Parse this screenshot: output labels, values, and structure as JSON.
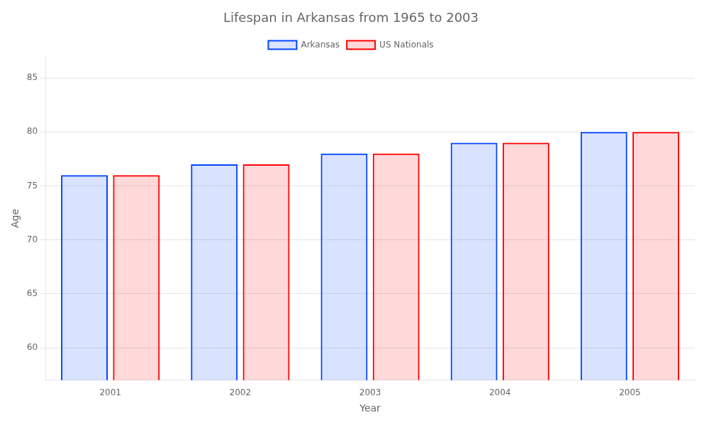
{
  "chart_data": {
    "type": "bar",
    "title": "Lifespan in Arkansas from 1965 to 2003",
    "xlabel": "Year",
    "ylabel": "Age",
    "categories": [
      "2001",
      "2002",
      "2003",
      "2004",
      "2005"
    ],
    "series": [
      {
        "name": "Arkansas",
        "color": "#0044ff",
        "values": [
          76,
          77,
          78,
          79,
          80
        ]
      },
      {
        "name": "US Nationals",
        "color": "#ff0000",
        "values": [
          76,
          77,
          78,
          79,
          80
        ]
      }
    ],
    "ylim": [
      57,
      87
    ],
    "yticks": [
      60,
      65,
      70,
      75,
      80,
      85
    ],
    "grid": true,
    "legend": "top"
  }
}
